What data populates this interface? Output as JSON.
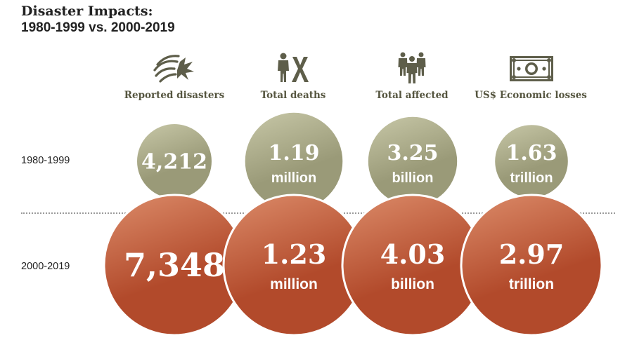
{
  "title": {
    "line1": "Disaster Impacts:",
    "line2": "1980-1999 vs. 2000-2019"
  },
  "icons": [
    "storm-wind-icon",
    "person-death-icon",
    "people-affected-icon",
    "banknote-icon"
  ],
  "colors": {
    "period1": "#9a9a78",
    "period1_light": "#c8c8a8",
    "period2": "#b24a2b",
    "period2_light": "#dc8c6a",
    "icon": "#5e5e4a"
  },
  "chart_data": {
    "type": "bubble",
    "title": "Disaster Impacts: 1980-1999 vs. 2000-2019",
    "categories": [
      "Reported disasters",
      "Total deaths",
      "Total affected",
      "US$ Economic losses"
    ],
    "series": [
      {
        "name": "1980-1999",
        "values": [
          4212,
          1.19,
          3.25,
          1.63
        ],
        "labels": [
          {
            "value": "4,212",
            "unit": ""
          },
          {
            "value": "1.19",
            "unit": "million"
          },
          {
            "value": "3.25",
            "unit": "billion"
          },
          {
            "value": "1.63",
            "unit": "trillion"
          }
        ]
      },
      {
        "name": "2000-2019",
        "values": [
          7348,
          1.23,
          4.03,
          2.97
        ],
        "labels": [
          {
            "value": "7,348",
            "unit": ""
          },
          {
            "value": "1.23",
            "unit": "million"
          },
          {
            "value": "4.03",
            "unit": "billion"
          },
          {
            "value": "2.97",
            "unit": "trillion"
          }
        ]
      }
    ]
  }
}
